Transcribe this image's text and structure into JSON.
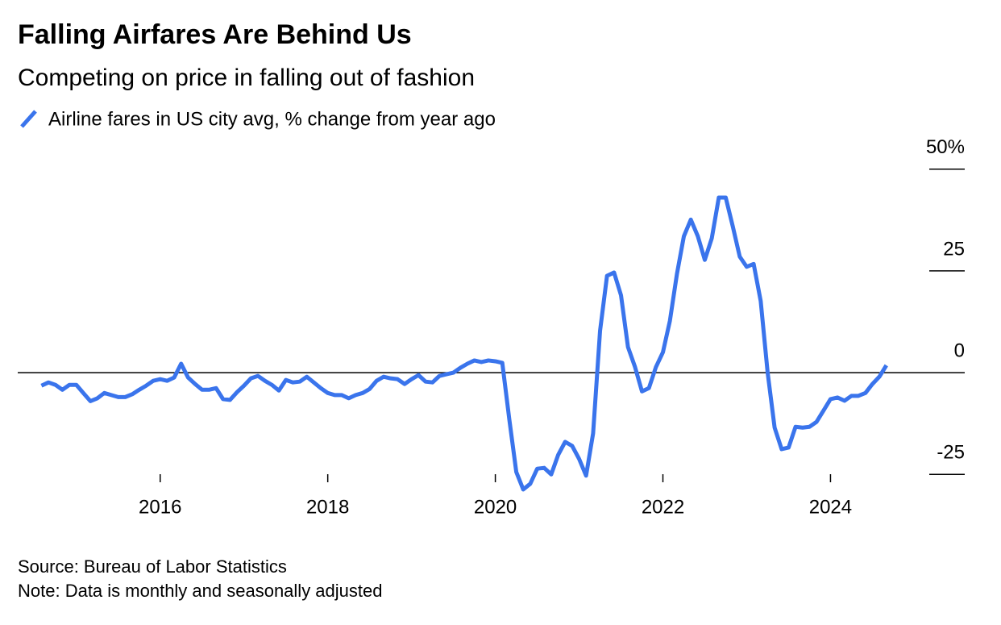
{
  "chart_data": {
    "type": "line",
    "title": "Falling Airfares Are Behind Us",
    "subtitle": "Competing on price in falling out of fashion",
    "source": "Source: Bureau of Labor Statistics",
    "note": "Note: Data is monthly and seasonally adjusted",
    "xlim": [
      2014.3,
      2025.15
    ],
    "xticks": [
      2016,
      2018,
      2020,
      2022,
      2024
    ],
    "ylim": [
      -30,
      55
    ],
    "yticks": [
      {
        "value": 50,
        "label": "50%"
      },
      25,
      0,
      -25
    ],
    "series": [
      {
        "name": "Airline fares in US city avg, % change from year ago",
        "color": "#3a74ec",
        "x": [
          2014.583,
          2014.667,
          2014.75,
          2014.833,
          2014.917,
          2015.0,
          2015.083,
          2015.167,
          2015.25,
          2015.333,
          2015.417,
          2015.5,
          2015.583,
          2015.667,
          2015.75,
          2015.833,
          2015.917,
          2016.0,
          2016.083,
          2016.167,
          2016.25,
          2016.333,
          2016.417,
          2016.5,
          2016.583,
          2016.667,
          2016.75,
          2016.833,
          2016.917,
          2017.0,
          2017.083,
          2017.167,
          2017.25,
          2017.333,
          2017.417,
          2017.5,
          2017.583,
          2017.667,
          2017.75,
          2017.833,
          2017.917,
          2018.0,
          2018.083,
          2018.167,
          2018.25,
          2018.333,
          2018.417,
          2018.5,
          2018.583,
          2018.667,
          2018.75,
          2018.833,
          2018.917,
          2019.0,
          2019.083,
          2019.167,
          2019.25,
          2019.333,
          2019.417,
          2019.5,
          2019.583,
          2019.667,
          2019.75,
          2019.833,
          2019.917,
          2020.0,
          2020.083,
          2020.167,
          2020.25,
          2020.333,
          2020.417,
          2020.5,
          2020.583,
          2020.667,
          2020.75,
          2020.833,
          2020.917,
          2021.0,
          2021.083,
          2021.167,
          2021.25,
          2021.333,
          2021.417,
          2021.5,
          2021.583,
          2021.667,
          2021.75,
          2021.833,
          2021.917,
          2022.0,
          2022.083,
          2022.167,
          2022.25,
          2022.333,
          2022.417,
          2022.5,
          2022.583,
          2022.667,
          2022.75,
          2022.833,
          2022.917,
          2023.0,
          2023.083,
          2023.167,
          2023.25,
          2023.333,
          2023.417,
          2023.5,
          2023.583,
          2023.667,
          2023.75,
          2023.833,
          2023.917,
          2024.0,
          2024.083,
          2024.167,
          2024.25,
          2024.333,
          2024.417,
          2024.5,
          2024.583,
          2024.667
        ],
        "values": [
          -3.2,
          -2.4,
          -3,
          -4.2,
          -3,
          -3,
          -5,
          -7,
          -6.3,
          -5,
          -5.5,
          -6,
          -6,
          -5.3,
          -4.2,
          -3.2,
          -2,
          -1.6,
          -2,
          -1.2,
          2.2,
          -1.2,
          -2.8,
          -4.2,
          -4.2,
          -3.8,
          -6.5,
          -6.7,
          -4.8,
          -3.2,
          -1.4,
          -0.8,
          -2,
          -3,
          -4.4,
          -1.8,
          -2.4,
          -2.2,
          -1,
          -2.4,
          -3.8,
          -5,
          -5.5,
          -5.5,
          -6.3,
          -5.5,
          -5,
          -4,
          -2,
          -1,
          -1.4,
          -1.6,
          -2.8,
          -1.6,
          -0.6,
          -2.2,
          -2.4,
          -0.8,
          -0.4,
          0,
          1.2,
          2.2,
          3,
          2.6,
          3,
          2.8,
          2.4,
          -11.5,
          -24.4,
          -28.7,
          -27.3,
          -23.6,
          -23.4,
          -25,
          -20.2,
          -17,
          -18,
          -21.2,
          -25.3,
          -14.9,
          10.3,
          23.8,
          24.6,
          19,
          6.3,
          1.4,
          -4.6,
          -3.8,
          1.4,
          5,
          12.7,
          24.2,
          33.5,
          37.6,
          33.5,
          27.7,
          33,
          43,
          43,
          36,
          28.5,
          26,
          26.7,
          17.6,
          0,
          -13.5,
          -18.8,
          -18.4,
          -13.3,
          -13.5,
          -13.3,
          -12.1,
          -9.3,
          -6.5,
          -6.1,
          -6.9,
          -5.7,
          -5.7,
          -5,
          -2.8,
          -1,
          1.8
        ]
      }
    ]
  }
}
